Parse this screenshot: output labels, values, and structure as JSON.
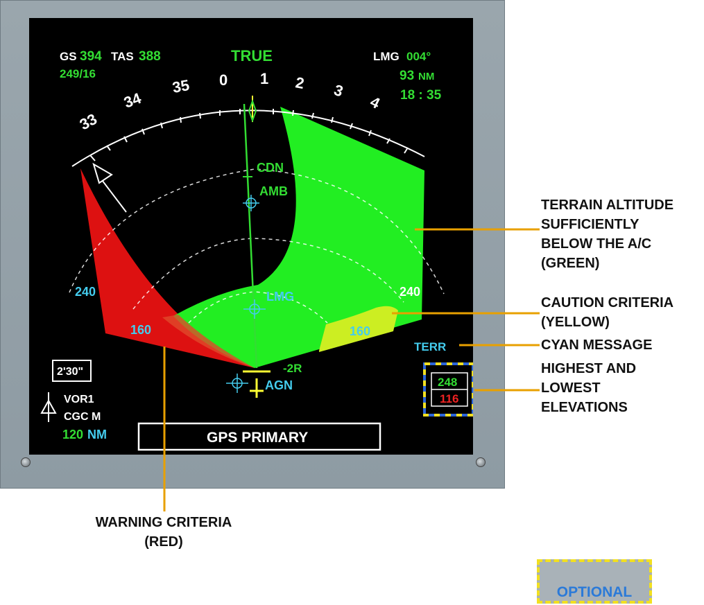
{
  "display": {
    "gs_label": "GS",
    "gs_value": "394",
    "tas_label": "TAS",
    "tas_value": "388",
    "wind": "249/16",
    "mode": "TRUE",
    "dest_label": "LMG",
    "dest_track": "004°",
    "dest_dist_value": "93",
    "dest_dist_unit": "NM",
    "dest_time": "18 : 35",
    "heading_ticks": [
      "33",
      "34",
      "35",
      "0",
      "1",
      "2",
      "3",
      "4"
    ],
    "waypoints": [
      "CDN",
      "AMB",
      "LMG",
      "AGN"
    ],
    "range_label_left": "240",
    "range_label_right": "240",
    "range_label_160_left": "160",
    "range_label_160_right": "160",
    "track_offset": "-2R",
    "terr_message": "TERR",
    "elevation_high": "248",
    "elevation_low": "116",
    "chrono": "2'30\"",
    "vor_name": "VOR1",
    "vor_ident": "CGC M",
    "vor_dist_value": "120",
    "vor_dist_unit": "NM",
    "gps_message": "GPS PRIMARY"
  },
  "callouts": {
    "terrain_green": "TERRAIN ALTITUDE\nSUFFICIENTLY\nBELOW THE A/C\n(GREEN)",
    "caution_yellow": "CAUTION CRITERIA\n(YELLOW)",
    "cyan_message": "CYAN MESSAGE",
    "elevations": "HIGHEST AND\nLOWEST\nELEVATIONS",
    "warning_red": "WARNING CRITERIA\n(RED)",
    "optional": "OPTIONAL"
  },
  "colors": {
    "terrain_green": "#22ee22",
    "caution_yellow": "#ccee22",
    "warning_red": "#dd1111",
    "cyan": "#44ccee",
    "symbol_green": "#33dd33",
    "callout_line": "#e8a000",
    "optional_blue": "#2b64d8",
    "optional_yellow": "#f2e020"
  }
}
